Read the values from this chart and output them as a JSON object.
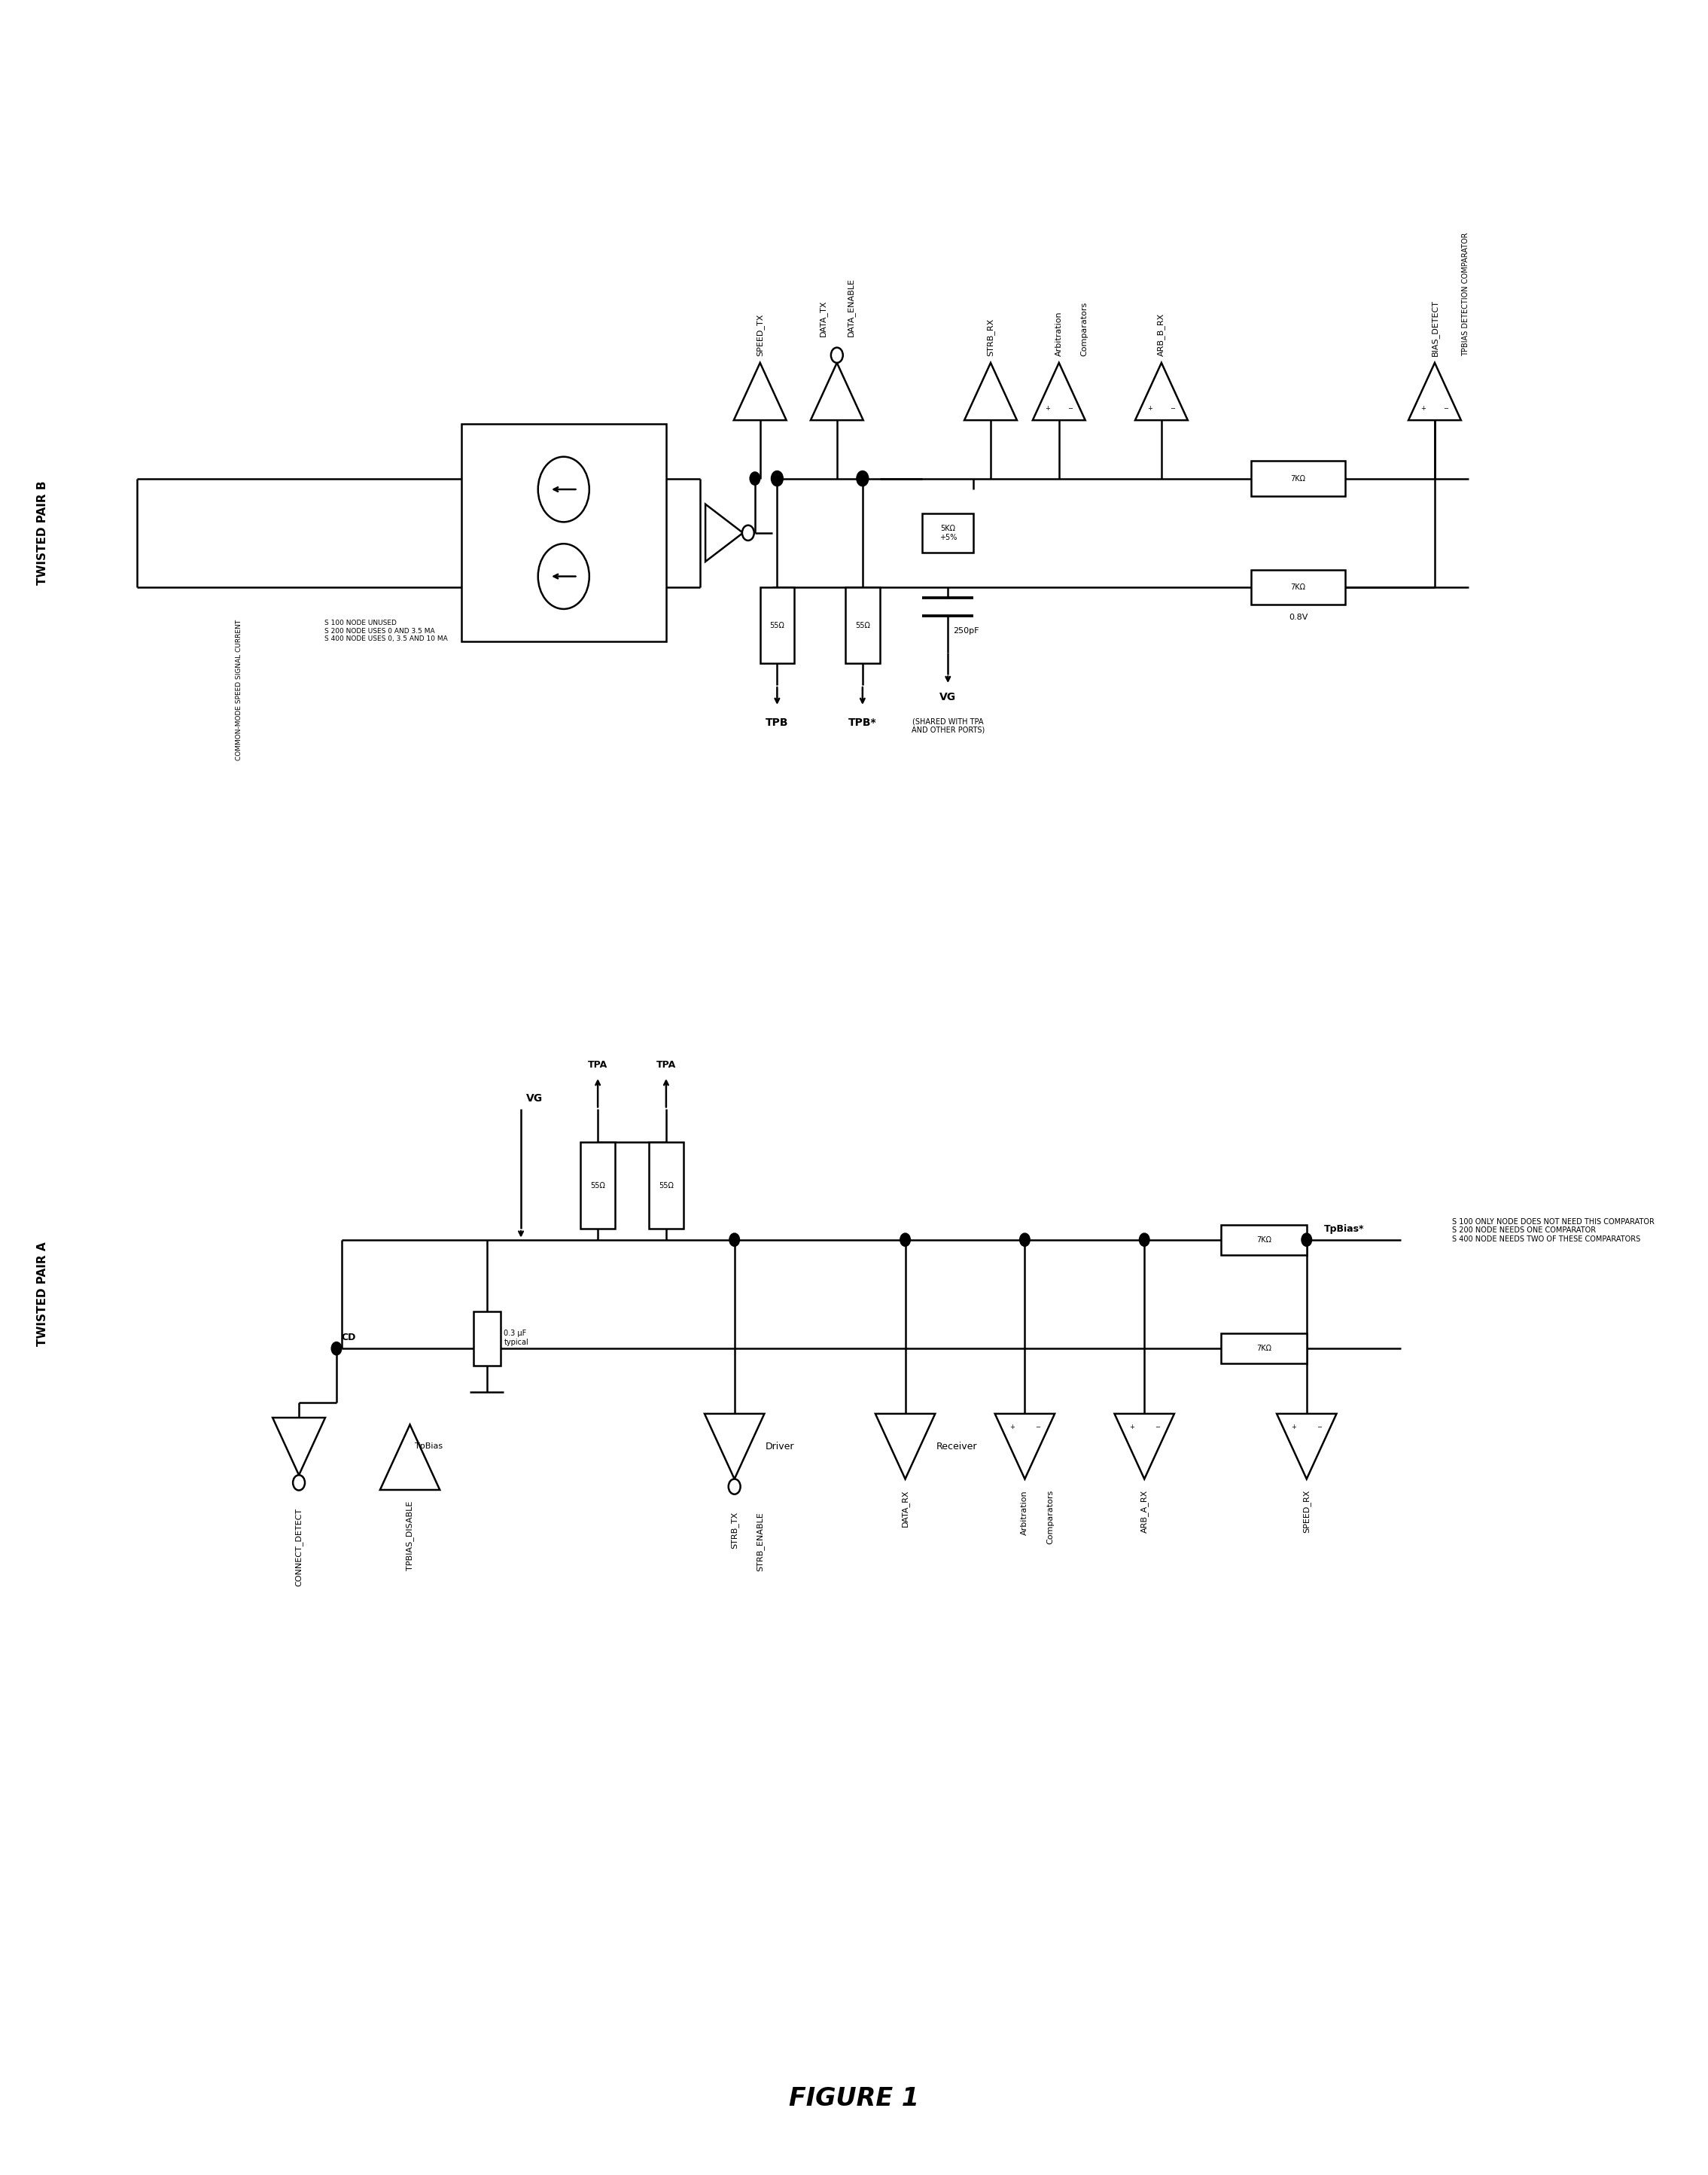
{
  "title": "FIGURE 1",
  "bg_color": "#ffffff",
  "line_color": "#000000",
  "fig_width": 22.69,
  "fig_height": 28.89,
  "twisted_pair_b_label": "TWISTED PAIR B",
  "twisted_pair_a_label": "TWISTED PAIR A",
  "resistor_55_label": "55Ω",
  "resistor_5k_label": "5KΩ\n+5%",
  "resistor_7k_label": "7KΩ",
  "vg_label": "VG",
  "tpa_label": "TPA",
  "tpb_label": "TPB",
  "tpbstar_label": "TPB*",
  "cap_label": "250pF",
  "bias_label": "0.8V",
  "tpbias_star_label": "TpBias*",
  "cd_label": "CD",
  "shared_label": "(SHARED WITH TPA\nAND OTHER PORTS)",
  "cm_label": "COMMON-MODE SPEED SIGNAL CURRENT",
  "s100_notes": "S 100 NODE UNUSED\nS 200 NODE USES 0 AND 3.5 MA\nS 400 NODE USES 0, 3.5 AND 10 MA",
  "s100_notes_b": "S 100 ONLY NODE DOES NOT NEED THIS COMPARATOR\nS 200 NODE NEEDS ONE COMPARATOR\nS 400 NODE NEEDS TWO OF THESE COMPARATORS",
  "cap_03_label": "0.3 µF\ntypical",
  "driver_label": "Driver",
  "receiver_label": "Receiver",
  "speed_tx": "SPEED_TX",
  "data_tx": "DATA_TX",
  "data_enable": "DATA_ENABLE",
  "strb_rx": "STRB_RX",
  "arbitration": "Arbitration",
  "comparators": "Comparators",
  "arb_b_rx": "ARB_B_RX",
  "bias_detect": "BIAS_DETECT",
  "tpbias_det_comp": "TPBIAS DETECTION COMPARATOR",
  "connect_detect": "CONNECT_DETECT",
  "tpbias_disable": "TPBIAS_DISABLE",
  "tpbias_lbl": "TpBias",
  "strb_tx": "STRB_TX",
  "strb_enable": "STRB_ENABLE",
  "data_rx": "DATA_RX",
  "arb_a_rx": "ARB_A_RX",
  "speed_rx": "SPEED_RX"
}
